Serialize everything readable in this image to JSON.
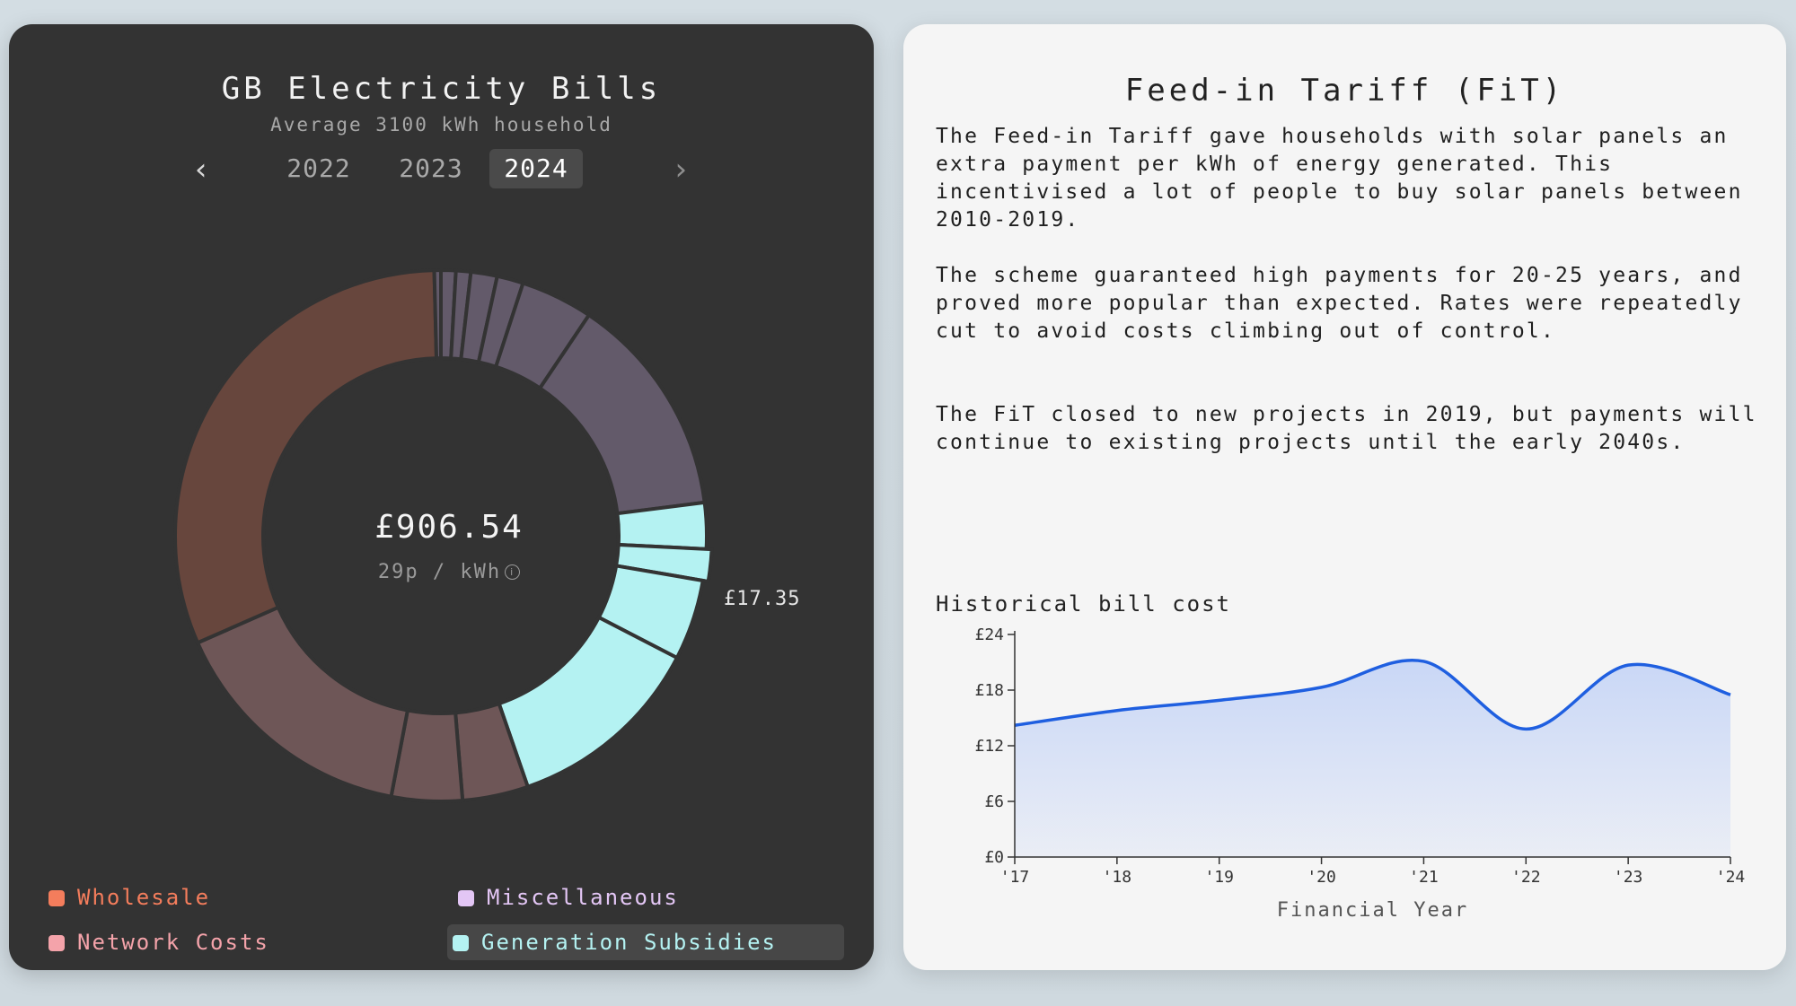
{
  "left": {
    "title": "GB Electricity Bills",
    "subtitle": "Average 3100 kWh household",
    "years": [
      "2022",
      "2023",
      "2024"
    ],
    "active_year": "2024",
    "center_total": "£906.54",
    "center_rate": "29p / kWh",
    "hover_label": "£17.35",
    "legend": [
      {
        "label": "Wholesale",
        "color": "#f47d5c",
        "text_color": "#f47d5c"
      },
      {
        "label": "Miscellaneous",
        "color": "#e3c6f5",
        "text_color": "#e3c6f5"
      },
      {
        "label": "Network Costs",
        "color": "#f4a3aa",
        "text_color": "#f4a3aa"
      },
      {
        "label": "Generation Subsidies",
        "color": "#b4f2f2",
        "text_color": "#b4f2f2",
        "selected": true
      }
    ]
  },
  "right": {
    "title": "Feed-in Tariff (FiT)",
    "paragraphs": [
      "The Feed-in Tariff gave households with solar panels an extra payment per kWh of energy generated. This incentivised a lot of people to buy solar panels between 2010-2019.",
      "The scheme guaranteed high payments for 20-25 years, and proved more popular than expected. Rates were repeatedly cut to avoid costs climbing out of control.",
      "The FiT closed to new projects in 2019, but payments will continue to existing projects until the early 2040s."
    ],
    "chart_title": "Historical bill cost"
  },
  "chart_data": [
    {
      "type": "pie",
      "subtype": "donut",
      "total": "£906.54",
      "slices": [
        {
          "value": 0.9,
          "group": "Miscellaneous",
          "color": "#635a6a"
        },
        {
          "value": 0.9,
          "group": "Miscellaneous",
          "color": "#635a6a"
        },
        {
          "value": 1.6,
          "group": "Miscellaneous",
          "color": "#635a6a"
        },
        {
          "value": 1.6,
          "group": "Miscellaneous",
          "color": "#635a6a"
        },
        {
          "value": 4.4,
          "group": "Miscellaneous",
          "color": "#635a6a"
        },
        {
          "value": 13.6,
          "group": "Miscellaneous",
          "color": "#635a6a"
        },
        {
          "value": 2.8,
          "group": "Generation Subsidies",
          "color": "#b4f2f2"
        },
        {
          "value": 1.9,
          "group": "Generation Subsidies",
          "color": "#b4f2f2"
        },
        {
          "value": 4.9,
          "group": "Generation Subsidies",
          "color": "#b4f2f2"
        },
        {
          "value": 12.1,
          "group": "Generation Subsidies",
          "color": "#b4f2f2"
        },
        {
          "value": 4.0,
          "group": "Network Costs",
          "color": "#6e5657"
        },
        {
          "value": 4.3,
          "group": "Network Costs",
          "color": "#6e5657"
        },
        {
          "value": 15.4,
          "group": "Network Costs",
          "color": "#6e5657"
        },
        {
          "value": 31.2,
          "group": "Wholesale",
          "color": "#67463d"
        },
        {
          "value": 0.4,
          "group": "Miscellaneous",
          "color": "#635a6a"
        }
      ],
      "highlighted_value": "£17.35"
    },
    {
      "type": "area",
      "x": [
        "'17",
        "'18",
        "'19",
        "'20",
        "'21",
        "'22",
        "'23",
        "'24"
      ],
      "values": [
        14.2,
        15.8,
        16.9,
        18.3,
        21.1,
        13.8,
        20.7,
        17.5
      ],
      "yticks": [
        "£0",
        "£6",
        "£12",
        "£18",
        "£24"
      ],
      "ylim": [
        0,
        24
      ],
      "xlabel": "Financial Year",
      "line_color": "#1f5fe0",
      "fill_color": "#c9d7f6"
    }
  ]
}
